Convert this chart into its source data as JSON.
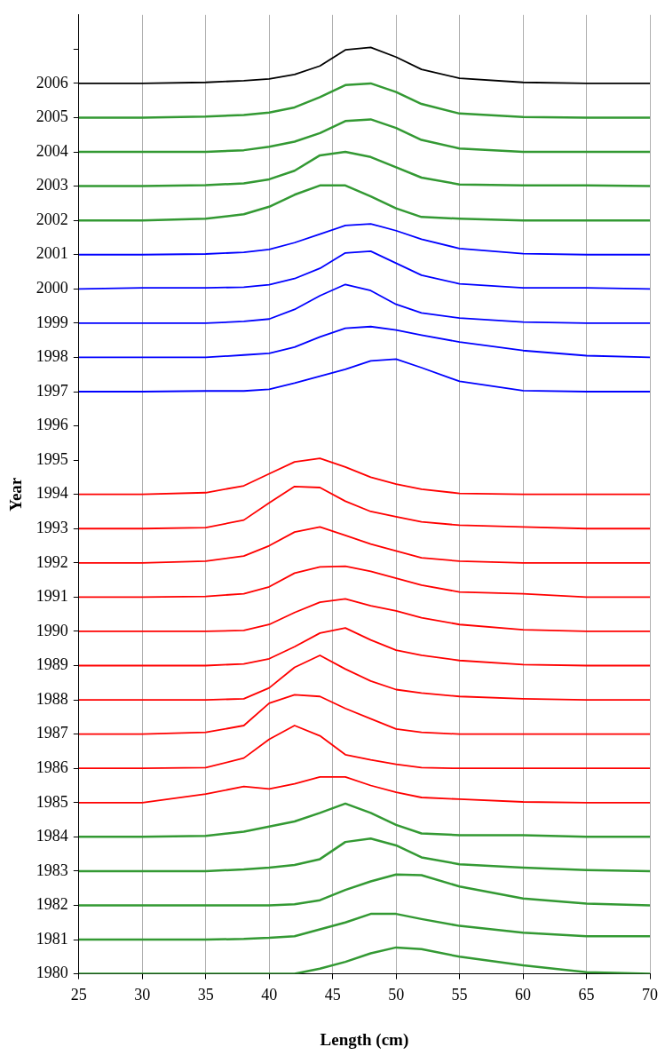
{
  "chart_data": {
    "type": "line",
    "xlabel": "Length (cm)",
    "ylabel": "Year",
    "grid": "x",
    "legend": false,
    "x": [
      25,
      30,
      35,
      38,
      40,
      42,
      44,
      46,
      48,
      50,
      52,
      55,
      60,
      65,
      70
    ],
    "xlim": [
      25,
      70
    ],
    "xticks": [
      25,
      30,
      35,
      40,
      45,
      50,
      55,
      60,
      65,
      70
    ],
    "ylim": [
      1980,
      2008
    ],
    "yticks": [
      1980,
      1981,
      1982,
      1983,
      1984,
      1985,
      1986,
      1987,
      1988,
      1989,
      1990,
      1991,
      1992,
      1993,
      1994,
      1995,
      1996,
      1997,
      1998,
      1999,
      2000,
      2001,
      2002,
      2003,
      2004,
      2005,
      2006,
      {
        "value": 2007,
        "label": null
      }
    ],
    "series": [
      {
        "color": "#339933",
        "values": [
          1980,
          1980,
          1980,
          1980,
          1980,
          1980,
          1980.15,
          1980.35,
          1980.6,
          1980.77,
          1980.72,
          1980.5,
          1980.25,
          1980.05,
          1980
        ]
      },
      {
        "color": "#339933",
        "values": [
          1981,
          1981,
          1981,
          1981.02,
          1981.05,
          1981.1,
          1981.3,
          1981.5,
          1981.75,
          1981.75,
          1981.6,
          1981.4,
          1981.2,
          1981.1,
          1981.1
        ]
      },
      {
        "color": "#339933",
        "values": [
          1982,
          1982,
          1982,
          1982,
          1982,
          1982.03,
          1982.15,
          1982.45,
          1982.7,
          1982.9,
          1982.88,
          1982.55,
          1982.2,
          1982.05,
          1982
        ]
      },
      {
        "color": "#339933",
        "values": [
          1983,
          1983,
          1983,
          1983.05,
          1983.1,
          1983.18,
          1983.35,
          1983.85,
          1983.95,
          1983.75,
          1983.4,
          1983.2,
          1983.1,
          1983.03,
          1983
        ]
      },
      {
        "color": "#339933",
        "values": [
          1984,
          1984,
          1984.03,
          1984.15,
          1984.3,
          1984.45,
          1984.7,
          1984.97,
          1984.7,
          1984.35,
          1984.1,
          1984.05,
          1984.05,
          1984,
          1984
        ]
      },
      {
        "color": "#ff0000",
        "values": [
          1985,
          1985,
          1985.25,
          1985.47,
          1985.4,
          1985.55,
          1985.75,
          1985.75,
          1985.5,
          1985.3,
          1985.15,
          1985.1,
          1985.02,
          1985,
          1985
        ]
      },
      {
        "color": "#ff0000",
        "values": [
          1986,
          1986,
          1986.02,
          1986.3,
          1986.85,
          1987.25,
          1986.95,
          1986.4,
          1986.25,
          1986.12,
          1986.02,
          1986,
          1986,
          1986,
          1986
        ]
      },
      {
        "color": "#ff0000",
        "values": [
          1987,
          1987,
          1987.05,
          1987.25,
          1987.9,
          1988.15,
          1988.1,
          1987.75,
          1987.45,
          1987.15,
          1987.05,
          1987,
          1987,
          1987,
          1987
        ]
      },
      {
        "color": "#ff0000",
        "values": [
          1988,
          1988,
          1988,
          1988.03,
          1988.35,
          1988.95,
          1989.3,
          1988.9,
          1988.55,
          1988.3,
          1988.2,
          1988.1,
          1988.03,
          1988,
          1988
        ]
      },
      {
        "color": "#ff0000",
        "values": [
          1989,
          1989,
          1989,
          1989.05,
          1989.2,
          1989.55,
          1989.95,
          1990.1,
          1989.75,
          1989.45,
          1989.3,
          1989.15,
          1989.03,
          1989,
          1989
        ]
      },
      {
        "color": "#ff0000",
        "values": [
          1990,
          1990,
          1990,
          1990.03,
          1990.2,
          1990.55,
          1990.85,
          1990.95,
          1990.75,
          1990.6,
          1990.4,
          1990.2,
          1990.05,
          1990,
          1990
        ]
      },
      {
        "color": "#ff0000",
        "values": [
          1991,
          1991,
          1991.02,
          1991.1,
          1991.3,
          1991.7,
          1991.88,
          1991.9,
          1991.75,
          1991.55,
          1991.35,
          1991.15,
          1991.1,
          1991,
          1991
        ]
      },
      {
        "color": "#ff0000",
        "values": [
          1992,
          1992,
          1992.05,
          1992.2,
          1992.5,
          1992.9,
          1993.05,
          1992.8,
          1992.55,
          1992.35,
          1992.15,
          1992.05,
          1992,
          1992,
          1992
        ]
      },
      {
        "color": "#ff0000",
        "values": [
          1993,
          1993,
          1993.03,
          1993.25,
          1993.75,
          1994.23,
          1994.2,
          1993.8,
          1993.5,
          1993.35,
          1993.2,
          1993.1,
          1993.05,
          1993,
          1993
        ]
      },
      {
        "color": "#ff0000",
        "values": [
          1994,
          1994,
          1994.05,
          1994.25,
          1994.6,
          1994.95,
          1995.05,
          1994.8,
          1994.5,
          1994.3,
          1994.15,
          1994.03,
          1994,
          1994,
          1994
        ]
      },
      {
        "color": "#0000ff",
        "values": [
          1997,
          1997,
          1997.02,
          1997.02,
          1997.07,
          1997.25,
          1997.45,
          1997.65,
          1997.9,
          1997.95,
          1997.7,
          1997.3,
          1997.03,
          1997,
          1997
        ]
      },
      {
        "color": "#0000ff",
        "values": [
          1998,
          1998,
          1998,
          1998.07,
          1998.12,
          1998.3,
          1998.6,
          1998.85,
          1998.9,
          1998.8,
          1998.65,
          1998.45,
          1998.2,
          1998.05,
          1998
        ]
      },
      {
        "color": "#0000ff",
        "values": [
          1999,
          1999,
          1999,
          1999.05,
          1999.12,
          1999.4,
          1999.8,
          2000.13,
          1999.95,
          1999.55,
          1999.3,
          1999.15,
          1999.03,
          1999,
          1999
        ]
      },
      {
        "color": "#0000ff",
        "values": [
          2000,
          2000.03,
          2000.03,
          2000.05,
          2000.12,
          2000.3,
          2000.6,
          2001.05,
          2001.1,
          2000.75,
          2000.4,
          2000.15,
          2000.03,
          2000.03,
          2000
        ]
      },
      {
        "color": "#0000ff",
        "values": [
          2001,
          2001,
          2001.02,
          2001.07,
          2001.15,
          2001.35,
          2001.6,
          2001.85,
          2001.9,
          2001.7,
          2001.45,
          2001.18,
          2001.03,
          2001,
          2001
        ]
      },
      {
        "color": "#339933",
        "values": [
          2002,
          2002,
          2002.05,
          2002.18,
          2002.4,
          2002.75,
          2003.02,
          2003.02,
          2002.7,
          2002.35,
          2002.1,
          2002.05,
          2002,
          2002,
          2002
        ]
      },
      {
        "color": "#339933",
        "values": [
          2003,
          2003,
          2003.03,
          2003.08,
          2003.2,
          2003.45,
          2003.9,
          2004,
          2003.85,
          2003.55,
          2003.25,
          2003.05,
          2003.02,
          2003.02,
          2003
        ]
      },
      {
        "color": "#339933",
        "values": [
          2004,
          2004,
          2004,
          2004.05,
          2004.15,
          2004.3,
          2004.55,
          2004.9,
          2004.95,
          2004.7,
          2004.35,
          2004.1,
          2004,
          2004,
          2004
        ]
      },
      {
        "color": "#339933",
        "values": [
          2005,
          2005,
          2005.03,
          2005.08,
          2005.15,
          2005.3,
          2005.6,
          2005.95,
          2006,
          2005.75,
          2005.4,
          2005.12,
          2005.02,
          2005,
          2005
        ]
      },
      {
        "color": "#000000",
        "values": [
          2006,
          2006,
          2006.03,
          2006.08,
          2006.13,
          2006.26,
          2006.51,
          2006.98,
          2007.05,
          2006.77,
          2006.41,
          2006.15,
          2006.03,
          2006,
          2006
        ]
      }
    ]
  }
}
